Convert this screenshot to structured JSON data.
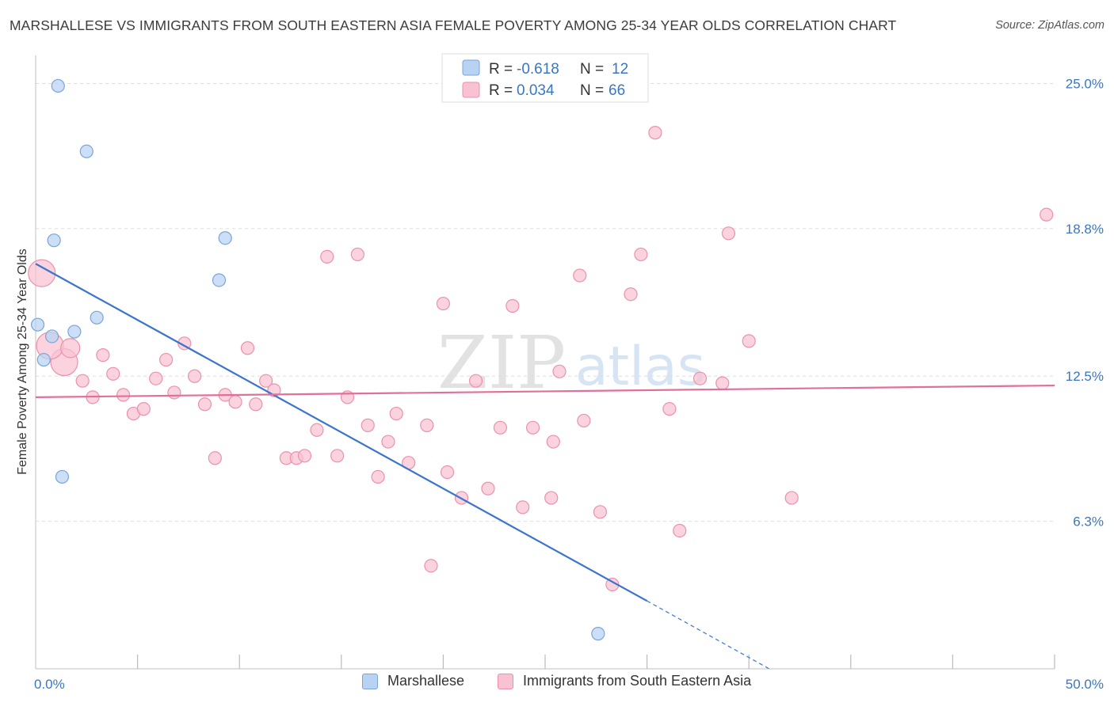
{
  "title": "MARSHALLESE VS IMMIGRANTS FROM SOUTH EASTERN ASIA FEMALE POVERTY AMONG 25-34 YEAR OLDS CORRELATION CHART",
  "source": "Source: ZipAtlas.com",
  "watermark": {
    "zip": "ZIP",
    "atlas": "atlas"
  },
  "colors": {
    "blue_fill": "#b8d3f2",
    "blue_stroke": "#7aa4d8",
    "blue_line": "#3a74cc",
    "pink_fill": "#f8c2d2",
    "pink_stroke": "#ea92ac",
    "pink_line": "#e0709a",
    "axis_label": "#3a76c2",
    "grid": "#dddddd"
  },
  "stats_box": {
    "rows": [
      {
        "series": "Marshallese",
        "r_label": "R =",
        "r_value": "-0.618",
        "n_label": "N =",
        "n_value": "12"
      },
      {
        "series": "Immigrants from South Eastern Asia",
        "r_label": "R =",
        "r_value": "0.034",
        "n_label": "N =",
        "n_value": "66"
      }
    ]
  },
  "legend": {
    "items": [
      {
        "label": "Marshallese"
      },
      {
        "label": "Immigrants from South Eastern Asia"
      }
    ]
  },
  "chart_data": {
    "type": "scatter",
    "xlabel": "",
    "ylabel": "Female Poverty Among 25-34 Year Olds",
    "xlim": [
      0,
      50
    ],
    "ylim": [
      0,
      26.2
    ],
    "x_tick_labels": [
      {
        "value": 0,
        "label": "0.0%"
      },
      {
        "value": 50,
        "label": "50.0%"
      }
    ],
    "x_minor_ticks": [
      5,
      10,
      15,
      20,
      25,
      30,
      35,
      40,
      45,
      50
    ],
    "y_ticks": [
      {
        "value": 6.3,
        "label": "6.3%"
      },
      {
        "value": 12.5,
        "label": "12.5%"
      },
      {
        "value": 18.8,
        "label": "18.8%"
      },
      {
        "value": 25.0,
        "label": "25.0%"
      }
    ],
    "grid": true,
    "legend_position": "bottom-center",
    "series": [
      {
        "name": "Marshallese",
        "r": -0.618,
        "n": 12,
        "points": [
          {
            "x": 1.1,
            "y": 24.9
          },
          {
            "x": 2.5,
            "y": 22.1
          },
          {
            "x": 0.9,
            "y": 18.3
          },
          {
            "x": 9.0,
            "y": 16.6
          },
          {
            "x": 0.1,
            "y": 14.7
          },
          {
            "x": 0.8,
            "y": 14.2
          },
          {
            "x": 1.9,
            "y": 14.4
          },
          {
            "x": 3.0,
            "y": 15.0
          },
          {
            "x": 0.4,
            "y": 13.2
          },
          {
            "x": 1.3,
            "y": 8.2
          },
          {
            "x": 27.6,
            "y": 1.5
          },
          {
            "x": 9.3,
            "y": 18.4
          }
        ],
        "trendline": {
          "x_start": 0,
          "y_start": 17.3,
          "x_solid_end": 30.0,
          "y_solid_end": 2.9,
          "x_dash_end": 36.0,
          "y_dash_end": 0
        }
      },
      {
        "name": "Immigrants from South Eastern Asia",
        "r": 0.034,
        "n": 66,
        "points": [
          {
            "x": 0.3,
            "y": 16.9,
            "size": "large"
          },
          {
            "x": 1.4,
            "y": 13.1,
            "size": "large"
          },
          {
            "x": 0.7,
            "y": 13.8,
            "size": "large"
          },
          {
            "x": 1.7,
            "y": 13.7,
            "size": "medium"
          },
          {
            "x": 2.3,
            "y": 12.3
          },
          {
            "x": 2.8,
            "y": 11.6
          },
          {
            "x": 3.3,
            "y": 13.4
          },
          {
            "x": 3.8,
            "y": 12.6
          },
          {
            "x": 4.3,
            "y": 11.7
          },
          {
            "x": 4.8,
            "y": 10.9
          },
          {
            "x": 5.3,
            "y": 11.1
          },
          {
            "x": 5.9,
            "y": 12.4
          },
          {
            "x": 6.4,
            "y": 13.2
          },
          {
            "x": 6.8,
            "y": 11.8
          },
          {
            "x": 7.3,
            "y": 13.9
          },
          {
            "x": 7.8,
            "y": 12.5
          },
          {
            "x": 8.3,
            "y": 11.3
          },
          {
            "x": 8.8,
            "y": 9.0
          },
          {
            "x": 9.3,
            "y": 11.7
          },
          {
            "x": 9.8,
            "y": 11.4
          },
          {
            "x": 10.4,
            "y": 13.7
          },
          {
            "x": 10.8,
            "y": 11.3
          },
          {
            "x": 11.3,
            "y": 12.3
          },
          {
            "x": 11.7,
            "y": 11.9
          },
          {
            "x": 12.3,
            "y": 9.0
          },
          {
            "x": 12.8,
            "y": 9.0
          },
          {
            "x": 13.2,
            "y": 9.1
          },
          {
            "x": 13.8,
            "y": 10.2
          },
          {
            "x": 14.3,
            "y": 17.6
          },
          {
            "x": 14.8,
            "y": 9.1
          },
          {
            "x": 15.3,
            "y": 11.6
          },
          {
            "x": 15.8,
            "y": 17.7
          },
          {
            "x": 16.3,
            "y": 10.4
          },
          {
            "x": 16.8,
            "y": 8.2
          },
          {
            "x": 17.3,
            "y": 9.7
          },
          {
            "x": 17.7,
            "y": 10.9
          },
          {
            "x": 18.3,
            "y": 8.8
          },
          {
            "x": 19.2,
            "y": 10.4
          },
          {
            "x": 19.4,
            "y": 4.4
          },
          {
            "x": 20.0,
            "y": 15.6
          },
          {
            "x": 20.2,
            "y": 8.4
          },
          {
            "x": 20.9,
            "y": 7.3
          },
          {
            "x": 21.6,
            "y": 12.3
          },
          {
            "x": 22.2,
            "y": 7.7
          },
          {
            "x": 22.8,
            "y": 10.3
          },
          {
            "x": 23.4,
            "y": 15.5
          },
          {
            "x": 23.9,
            "y": 6.9
          },
          {
            "x": 24.4,
            "y": 10.3
          },
          {
            "x": 25.3,
            "y": 7.3
          },
          {
            "x": 25.4,
            "y": 9.7
          },
          {
            "x": 25.7,
            "y": 12.7
          },
          {
            "x": 26.7,
            "y": 16.8
          },
          {
            "x": 26.9,
            "y": 10.6
          },
          {
            "x": 27.7,
            "y": 6.7
          },
          {
            "x": 28.3,
            "y": 3.6
          },
          {
            "x": 29.2,
            "y": 16.0
          },
          {
            "x": 29.7,
            "y": 17.7
          },
          {
            "x": 30.4,
            "y": 22.9
          },
          {
            "x": 31.1,
            "y": 11.1
          },
          {
            "x": 31.6,
            "y": 5.9
          },
          {
            "x": 32.6,
            "y": 12.4
          },
          {
            "x": 33.7,
            "y": 12.2
          },
          {
            "x": 34.0,
            "y": 18.6
          },
          {
            "x": 35.0,
            "y": 14.0
          },
          {
            "x": 37.1,
            "y": 7.3
          },
          {
            "x": 49.6,
            "y": 19.4
          }
        ],
        "trendline": {
          "x_start": 0,
          "y_start": 11.6,
          "x_end": 50,
          "y_end": 12.1
        }
      }
    ]
  }
}
